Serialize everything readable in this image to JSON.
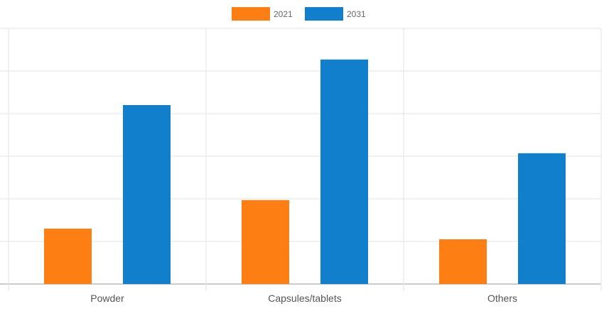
{
  "chart_data": {
    "type": "bar",
    "title": "",
    "xlabel": "",
    "ylabel": "",
    "categories": [
      "Powder",
      "Capsules/tablets",
      "Others"
    ],
    "series": [
      {
        "name": "2021",
        "color": "#fd7f14",
        "values": [
          1.3,
          1.97,
          1.05
        ]
      },
      {
        "name": "2031",
        "color": "#117fcc",
        "values": [
          4.2,
          5.27,
          3.07
        ]
      }
    ],
    "ylim": [
      0,
      6
    ],
    "grid": true,
    "legend_position": "top-center"
  }
}
